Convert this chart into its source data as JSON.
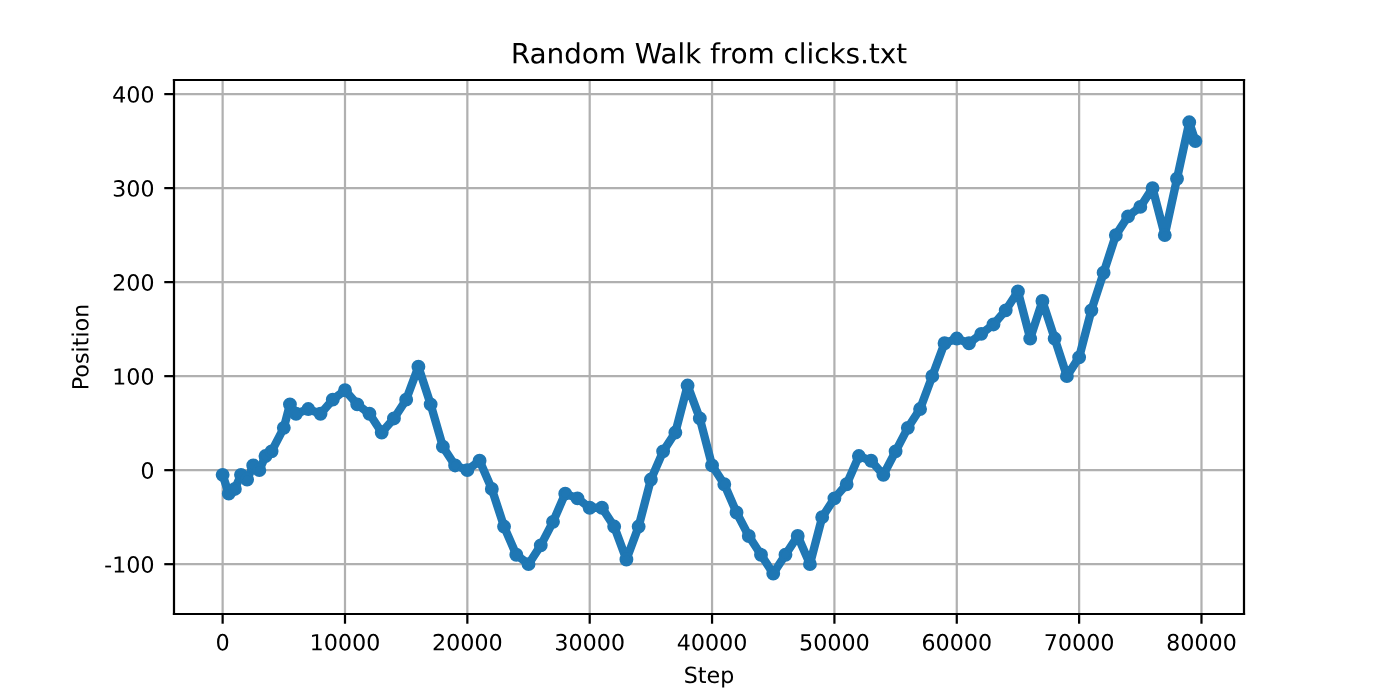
{
  "chart_data": {
    "type": "line",
    "title": "Random Walk from clicks.txt",
    "xlabel": "Step",
    "ylabel": "Position",
    "x": [
      0,
      500,
      1000,
      1500,
      2000,
      2500,
      3000,
      3500,
      4000,
      5000,
      5500,
      6000,
      7000,
      8000,
      9000,
      10000,
      11000,
      12000,
      13000,
      14000,
      15000,
      16000,
      17000,
      18000,
      19000,
      20000,
      21000,
      22000,
      23000,
      24000,
      25000,
      26000,
      27000,
      28000,
      29000,
      30000,
      31000,
      32000,
      33000,
      34000,
      35000,
      36000,
      37000,
      38000,
      39000,
      40000,
      41000,
      42000,
      43000,
      44000,
      45000,
      46000,
      47000,
      48000,
      49000,
      50000,
      51000,
      52000,
      53000,
      54000,
      55000,
      56000,
      57000,
      58000,
      59000,
      60000,
      61000,
      62000,
      63000,
      64000,
      65000,
      66000,
      67000,
      68000,
      69000,
      70000,
      71000,
      72000,
      73000,
      74000,
      75000,
      76000,
      77000,
      78000,
      79000,
      79500
    ],
    "series": [
      {
        "color": "#1f77b4",
        "values": [
          -5,
          -25,
          -20,
          -5,
          -10,
          5,
          0,
          15,
          20,
          45,
          70,
          60,
          65,
          60,
          75,
          85,
          70,
          60,
          40,
          55,
          75,
          110,
          70,
          25,
          5,
          0,
          10,
          -20,
          -60,
          -90,
          -100,
          -80,
          -55,
          -25,
          -30,
          -40,
          -40,
          -60,
          -95,
          -60,
          -10,
          20,
          40,
          90,
          55,
          5,
          -15,
          -45,
          -70,
          -90,
          -110,
          -90,
          -70,
          -100,
          -50,
          -30,
          -15,
          15,
          10,
          -5,
          20,
          45,
          65,
          100,
          135,
          140,
          135,
          145,
          155,
          170,
          190,
          140,
          180,
          140,
          100,
          120,
          170,
          210,
          250,
          270,
          280,
          300,
          250,
          310,
          370,
          350
        ]
      }
    ],
    "xlim": [
      -3975,
      83475
    ],
    "ylim": [
      -153,
      415
    ],
    "xticks": [
      0,
      10000,
      20000,
      30000,
      40000,
      50000,
      60000,
      70000,
      80000
    ],
    "yticks": [
      -100,
      0,
      100,
      200,
      300,
      400
    ],
    "grid": true,
    "marker": "circle",
    "line_style": "solid"
  }
}
